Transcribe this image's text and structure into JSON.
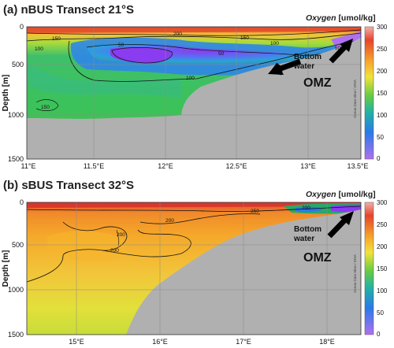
{
  "chart_data": [
    {
      "type": "heatmap",
      "title": "(a) nBUS Transect 21°S",
      "ylabel": "Depth [m]",
      "colorbar_title": "Oxygen",
      "colorbar_unit": "[umol/kg]",
      "colorbar_ticks": [
        "300",
        "250",
        "200",
        "150",
        "100",
        "50",
        "0"
      ],
      "colorbar_range": [
        0,
        300
      ],
      "x_ticks": [
        "11°E",
        "11.5°E",
        "12°E",
        "12.5°E",
        "13°E",
        "13.5°E"
      ],
      "xlim": [
        11,
        13.5
      ],
      "y_ticks": [
        "0",
        "500",
        "1000",
        "1500"
      ],
      "ylim": [
        1500,
        0
      ],
      "contour_labels": [
        "200",
        "150",
        "100",
        "50",
        "150",
        "50",
        "100",
        "50",
        "100",
        "150"
      ],
      "annotations": [
        "Bottom water",
        "OMZ"
      ],
      "credit": "Ocean Data View / DIVA",
      "grid": true
    },
    {
      "type": "heatmap",
      "title": "(b) sBUS Transect 32°S",
      "ylabel": "Depth [m]",
      "colorbar_title": "Oxygen",
      "colorbar_unit": "[umol/kg]",
      "colorbar_ticks": [
        "300",
        "250",
        "200",
        "150",
        "100",
        "50",
        "0"
      ],
      "colorbar_range": [
        0,
        300
      ],
      "x_ticks": [
        "15°E",
        "16°E",
        "17°E",
        "18°E"
      ],
      "xlim": [
        14.5,
        18.5
      ],
      "y_ticks": [
        "0",
        "500",
        "1000",
        "1500"
      ],
      "ylim": [
        1500,
        0
      ],
      "contour_labels": [
        "200",
        "200",
        "200",
        "250",
        "200"
      ],
      "annotations": [
        "Bottom water",
        "OMZ"
      ],
      "credit": "Ocean Data View / DIVA",
      "grid": true
    }
  ],
  "colors": {
    "seafloor": "#b0b0b0",
    "high_oxygen": "#e05a2a",
    "mid_oxygen": "#4cc24a",
    "low_oxygen": "#8a3cf0",
    "colorbar_stops": [
      "#f3a6a6",
      "#e6442c",
      "#f5a02a",
      "#f2e23a",
      "#66cc44",
      "#22b0a8",
      "#2a7ae8",
      "#9a40f0"
    ]
  }
}
